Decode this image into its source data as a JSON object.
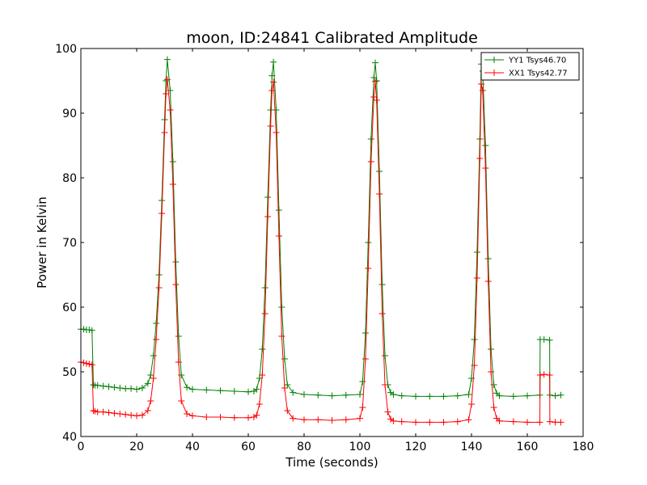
{
  "chart_data": {
    "type": "line",
    "title": "moon, ID:24841 Calibrated Amplitude",
    "xlabel": "Time (seconds)",
    "ylabel": "Power in Kelvin",
    "xlim": [
      0,
      180
    ],
    "ylim": [
      40,
      100
    ],
    "xticks": [
      0,
      20,
      40,
      60,
      80,
      100,
      120,
      140,
      160,
      180
    ],
    "yticks": [
      40,
      50,
      60,
      70,
      80,
      90,
      100
    ],
    "grid": false,
    "legend_position": "top-right",
    "marker": "plus",
    "series": [
      {
        "name": "YY1 Tsys46.70",
        "color": "#008000",
        "x": [
          0,
          1,
          2,
          3,
          4,
          4.5,
          5,
          6,
          8,
          10,
          12,
          14,
          16,
          18,
          20,
          22,
          24,
          25,
          26,
          27,
          28,
          29,
          30,
          30.5,
          31,
          32,
          33,
          34,
          35,
          36,
          38,
          40,
          45,
          50,
          55,
          60,
          62,
          63,
          64,
          65,
          66,
          67,
          68,
          68.5,
          69,
          70,
          71,
          72,
          73,
          74,
          76,
          80,
          85,
          90,
          95,
          100,
          101,
          102,
          103,
          104,
          105,
          105.5,
          106,
          107,
          108,
          109,
          110,
          111,
          112,
          115,
          120,
          125,
          130,
          135,
          139,
          140,
          141,
          142,
          143,
          143.5,
          144,
          145,
          146,
          147,
          148,
          149,
          150,
          155,
          160,
          164.5,
          164.6,
          166,
          168,
          168.1,
          170,
          172
        ],
        "y": [
          56.6,
          56.6,
          56.5,
          56.5,
          56.4,
          48.0,
          47.9,
          47.9,
          47.8,
          47.7,
          47.6,
          47.5,
          47.4,
          47.4,
          47.3,
          47.5,
          48.2,
          49.5,
          52.5,
          57.5,
          65.0,
          76.5,
          89.0,
          95.0,
          98.3,
          93.5,
          82.5,
          67.0,
          55.5,
          49.5,
          47.6,
          47.3,
          47.2,
          47.1,
          47.0,
          46.9,
          47.0,
          47.3,
          49.0,
          53.5,
          63.0,
          77.0,
          90.5,
          95.8,
          97.9,
          90.5,
          75.0,
          60.0,
          52.0,
          48.0,
          46.8,
          46.5,
          46.4,
          46.3,
          46.4,
          46.5,
          48.5,
          56.0,
          70.0,
          86.0,
          95.5,
          97.8,
          95.0,
          81.0,
          63.5,
          52.5,
          48.0,
          46.8,
          46.5,
          46.3,
          46.2,
          46.2,
          46.2,
          46.3,
          46.5,
          49.0,
          55.0,
          68.5,
          86.0,
          97.6,
          96.5,
          85.0,
          67.5,
          53.5,
          48.0,
          46.7,
          46.3,
          46.2,
          46.3,
          46.4,
          55.0,
          55.0,
          54.9,
          46.4,
          46.3,
          46.4
        ]
      },
      {
        "name": "XX1 Tsys42.77",
        "color": "#ff0000",
        "x": [
          0,
          1,
          2,
          3,
          4,
          4.5,
          5,
          6,
          8,
          10,
          12,
          14,
          16,
          18,
          20,
          22,
          24,
          25,
          26,
          27,
          28,
          29,
          30,
          30.5,
          31,
          32,
          33,
          34,
          35,
          36,
          38,
          40,
          45,
          50,
          55,
          60,
          62,
          63,
          64,
          65,
          66,
          67,
          68,
          68.5,
          69,
          70,
          71,
          72,
          73,
          74,
          76,
          80,
          85,
          90,
          95,
          100,
          101,
          102,
          103,
          104,
          105,
          105.5,
          106,
          107,
          108,
          109,
          110,
          111,
          112,
          115,
          120,
          125,
          130,
          135,
          139,
          140,
          141,
          142,
          143,
          143.5,
          144,
          145,
          146,
          147,
          148,
          149,
          150,
          155,
          160,
          164.5,
          164.6,
          166,
          168,
          168.1,
          170,
          172
        ],
        "y": [
          51.5,
          51.4,
          51.3,
          51.2,
          51.1,
          44.0,
          43.9,
          43.8,
          43.8,
          43.7,
          43.6,
          43.5,
          43.4,
          43.3,
          43.2,
          43.3,
          44.0,
          45.5,
          49.0,
          55.0,
          63.0,
          74.5,
          87.0,
          93.0,
          95.2,
          90.5,
          79.0,
          63.5,
          51.5,
          45.5,
          43.5,
          43.2,
          43.0,
          43.0,
          42.9,
          42.9,
          43.0,
          43.3,
          45.0,
          49.5,
          59.0,
          74.0,
          88.0,
          93.5,
          94.8,
          87.0,
          71.0,
          55.5,
          47.5,
          44.0,
          42.8,
          42.6,
          42.6,
          42.5,
          42.6,
          42.8,
          44.5,
          52.0,
          66.0,
          82.5,
          92.5,
          94.9,
          92.0,
          77.5,
          59.0,
          48.0,
          43.8,
          42.7,
          42.4,
          42.3,
          42.2,
          42.2,
          42.2,
          42.3,
          42.6,
          45.0,
          51.0,
          64.5,
          83.0,
          94.5,
          93.5,
          81.5,
          64.0,
          50.0,
          44.5,
          42.8,
          42.4,
          42.3,
          42.2,
          42.2,
          49.5,
          49.6,
          49.5,
          42.3,
          42.2,
          42.2
        ]
      }
    ]
  }
}
